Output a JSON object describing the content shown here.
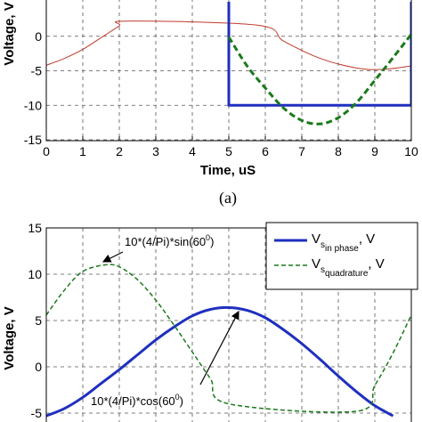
{
  "chart_data": [
    {
      "type": "line",
      "xlabel": "Time, uS",
      "ylabel": "Voltage, V",
      "xlim": [
        0,
        10
      ],
      "ylim": [
        -15,
        5
      ],
      "x_ticks": [
        "0",
        "1",
        "2",
        "3",
        "4",
        "5",
        "6",
        "7",
        "8",
        "9",
        "10"
      ],
      "y_ticks": [
        "0",
        "-5",
        "-10",
        "-15"
      ],
      "grid": true,
      "caption": "(a)",
      "series": [
        {
          "color": "#c0392b",
          "style": "solid-thin",
          "x": [
            0,
            0.5,
            1,
            1.5,
            2,
            2.2,
            5.8,
            6.5,
            7.5,
            8.5,
            9.2,
            10
          ],
          "y": [
            -4.2,
            -3.2,
            -1.9,
            -0.2,
            1.5,
            2.2,
            1.6,
            -0.7,
            -3.2,
            -4.6,
            -4.8,
            -4.3
          ]
        },
        {
          "color": "#1f2fbf",
          "style": "solid-thick",
          "x": [
            5,
            5,
            10,
            10
          ],
          "y": [
            5,
            -10,
            -10,
            5
          ]
        },
        {
          "color": "#1a7a1a",
          "style": "dashed-thick",
          "x": [
            5,
            5.5,
            6,
            6.5,
            7,
            7.5,
            8,
            8.5,
            9,
            9.5,
            10
          ],
          "y": [
            -0.1,
            -4.3,
            -7.5,
            -10.4,
            -12.2,
            -12.7,
            -11.8,
            -9.6,
            -6.4,
            -3.1,
            0.3
          ]
        }
      ]
    },
    {
      "type": "line",
      "ylabel": "Voltage, V",
      "xlim": [
        0,
        10
      ],
      "ylim": [
        -5,
        15
      ],
      "y_ticks": [
        "15",
        "10",
        "5",
        "0",
        "-5"
      ],
      "grid": true,
      "legend": "top-right",
      "series": [
        {
          "legend_main": "V",
          "legend_sub": "s",
          "legend_subsub": "in phase",
          "legend_tail": ", V",
          "color": "#1f2fbf",
          "style": "solid-thick",
          "x": [
            0,
            0.5,
            1,
            1.5,
            2,
            2.5,
            3,
            3.5,
            4,
            4.5,
            5,
            5.5,
            6,
            6.5,
            7,
            7.5,
            8,
            8.5,
            9,
            9.5
          ],
          "y": [
            -5.3,
            -4.5,
            -3.3,
            -1.8,
            -0.3,
            1.3,
            2.9,
            4.3,
            5.5,
            6.2,
            6.4,
            6.1,
            5.3,
            4.0,
            2.5,
            0.8,
            -1.0,
            -2.7,
            -4.2,
            -5.3
          ]
        },
        {
          "legend_main": "V",
          "legend_sub": "s",
          "legend_subsub": "quadrature",
          "legend_tail": ", V",
          "color": "#1a7a1a",
          "style": "dashed-thin",
          "x": [
            0,
            0.5,
            1,
            1.6,
            2,
            2.5,
            3,
            3.5,
            4,
            4.5,
            5,
            8.5,
            9,
            9.5,
            10
          ],
          "y": [
            5.6,
            8.3,
            10.3,
            11.0,
            10.8,
            9.4,
            7.2,
            4.5,
            1.6,
            -1.3,
            -4.0,
            -4.8,
            -2.0,
            1.5,
            5.6
          ]
        }
      ],
      "annotations": [
        {
          "text": "10*(4/Pi)*sin(60",
          "sup": "0",
          "tail": ")"
        },
        {
          "text": "10*(4/Pi)*cos(60",
          "sup": "0",
          "tail": ")"
        }
      ]
    }
  ]
}
